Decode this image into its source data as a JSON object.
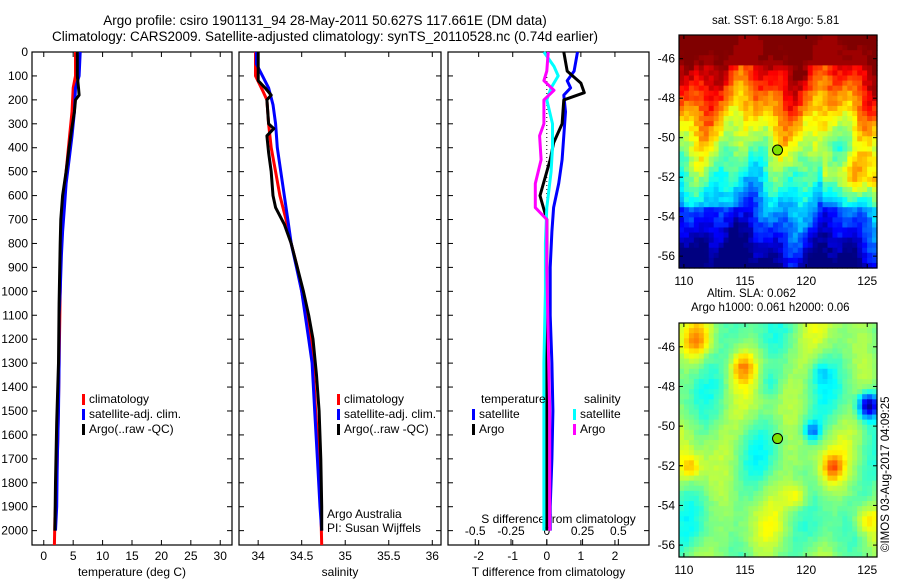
{
  "titles": {
    "line1": "Argo profile: csiro 1901131_94 28-May-2011 50.627S 117.661E (DM data)",
    "line2": "Climatology: CARS2009. Satellite-adjusted climatology: synTS_20110528.nc (0.74d earlier)"
  },
  "colors": {
    "climatology": "#ff0000",
    "satellite_adj": "#0000ff",
    "argo": "#000000",
    "t_satellite": "#0000ff",
    "t_argo": "#000000",
    "s_satellite": "#00ffff",
    "s_argo": "#ff00ff"
  },
  "annotations": {
    "argo_australia": "Argo Australia",
    "pi": "PI: Susan Wijffels",
    "copyright": "©IMOS 03-Aug-2017 04:09:25"
  },
  "chart_data": [
    {
      "type": "line",
      "name": "temperature-profile",
      "xlabel": "temperature (deg C)",
      "ylabel": "",
      "xlim": [
        -2,
        32
      ],
      "ylim": [
        2060,
        0
      ],
      "xticks": [
        0,
        5,
        10,
        15,
        20,
        25,
        30
      ],
      "yticks": [
        0,
        100,
        200,
        300,
        400,
        500,
        600,
        700,
        800,
        900,
        1000,
        1100,
        1200,
        1300,
        1400,
        1500,
        1600,
        1700,
        1800,
        1900,
        2000
      ],
      "legend": {
        "placement": "center-left",
        "entries": [
          "climatology",
          "satellite-adj. clim.",
          "Argo(..raw -QC)"
        ]
      },
      "series": [
        {
          "name": "climatology",
          "color": "#ff0000",
          "points": [
            [
              5.4,
              0
            ],
            [
              5.4,
              100
            ],
            [
              5.0,
              150
            ],
            [
              4.8,
              250
            ],
            [
              4.4,
              350
            ],
            [
              4.0,
              450
            ],
            [
              3.6,
              550
            ],
            [
              3.2,
              650
            ],
            [
              2.9,
              800
            ],
            [
              2.8,
              1000
            ],
            [
              2.6,
              1300
            ],
            [
              2.4,
              1600
            ],
            [
              2.2,
              1800
            ],
            [
              1.9,
              1950
            ],
            [
              1.8,
              2060
            ]
          ]
        },
        {
          "name": "satellite-adj. clim.",
          "color": "#0000ff",
          "points": [
            [
              6.2,
              0
            ],
            [
              6.0,
              100
            ],
            [
              5.4,
              150
            ],
            [
              5.2,
              250
            ],
            [
              4.8,
              350
            ],
            [
              4.3,
              450
            ],
            [
              3.8,
              550
            ],
            [
              3.5,
              650
            ],
            [
              3.2,
              750
            ],
            [
              3.0,
              850
            ],
            [
              2.8,
              1000
            ],
            [
              2.6,
              1100
            ],
            [
              2.6,
              1300
            ],
            [
              2.5,
              1500
            ],
            [
              2.3,
              1700
            ],
            [
              2.2,
              1900
            ],
            [
              2.0,
              2000
            ]
          ]
        },
        {
          "name": "Argo(..raw -QC)",
          "color": "#000000",
          "points": [
            [
              5.7,
              0
            ],
            [
              5.7,
              100
            ],
            [
              5.9,
              150
            ],
            [
              6.0,
              180
            ],
            [
              5.4,
              200
            ],
            [
              5.2,
              250
            ],
            [
              4.7,
              330
            ],
            [
              4.3,
              400
            ],
            [
              3.8,
              500
            ],
            [
              3.2,
              600
            ],
            [
              2.9,
              700
            ],
            [
              2.8,
              800
            ],
            [
              2.6,
              1050
            ],
            [
              2.5,
              1300
            ],
            [
              2.2,
              1550
            ],
            [
              2.0,
              1800
            ],
            [
              1.9,
              2000
            ]
          ]
        }
      ]
    },
    {
      "type": "line",
      "name": "salinity-profile",
      "xlabel": "salinity",
      "xlim": [
        33.78,
        36.1
      ],
      "ylim": [
        2060,
        0
      ],
      "xticks": [
        34,
        34.5,
        35,
        35.5,
        36
      ],
      "legend": {
        "placement": "center-right",
        "entries": [
          "climatology",
          "satellite-adj. clim.",
          "Argo(..raw -QC)"
        ]
      },
      "series": [
        {
          "name": "climatology",
          "color": "#ff0000",
          "points": [
            [
              33.97,
              0
            ],
            [
              33.97,
              100
            ],
            [
              34.05,
              160
            ],
            [
              34.1,
              200
            ],
            [
              34.12,
              300
            ],
            [
              34.15,
              400
            ],
            [
              34.2,
              500
            ],
            [
              34.25,
              600
            ],
            [
              34.32,
              700
            ],
            [
              34.38,
              800
            ],
            [
              34.45,
              900
            ],
            [
              34.5,
              1000
            ],
            [
              34.55,
              1100
            ],
            [
              34.6,
              1200
            ],
            [
              34.63,
              1300
            ],
            [
              34.66,
              1500
            ],
            [
              34.7,
              1700
            ],
            [
              34.72,
              1900
            ],
            [
              34.73,
              2060
            ]
          ]
        },
        {
          "name": "satellite-adj. clim.",
          "color": "#0000ff",
          "points": [
            [
              33.98,
              0
            ],
            [
              33.98,
              50
            ],
            [
              34.05,
              100
            ],
            [
              34.12,
              150
            ],
            [
              34.17,
              220
            ],
            [
              34.2,
              300
            ],
            [
              34.22,
              400
            ],
            [
              34.26,
              500
            ],
            [
              34.3,
              600
            ],
            [
              34.34,
              700
            ],
            [
              34.38,
              800
            ],
            [
              34.44,
              900
            ],
            [
              34.5,
              1000
            ],
            [
              34.54,
              1100
            ],
            [
              34.58,
              1200
            ],
            [
              34.62,
              1300
            ],
            [
              34.65,
              1500
            ],
            [
              34.68,
              1700
            ],
            [
              34.71,
              1900
            ],
            [
              34.73,
              2000
            ]
          ]
        },
        {
          "name": "Argo(..raw -QC)",
          "color": "#000000",
          "points": [
            [
              34.0,
              0
            ],
            [
              34.0,
              120
            ],
            [
              34.08,
              150
            ],
            [
              34.15,
              180
            ],
            [
              34.1,
              200
            ],
            [
              34.12,
              300
            ],
            [
              34.18,
              320
            ],
            [
              34.1,
              350
            ],
            [
              34.12,
              420
            ],
            [
              34.15,
              500
            ],
            [
              34.17,
              600
            ],
            [
              34.2,
              650
            ],
            [
              34.3,
              720
            ],
            [
              34.38,
              800
            ],
            [
              34.45,
              900
            ],
            [
              34.52,
              1000
            ],
            [
              34.58,
              1100
            ],
            [
              34.63,
              1200
            ],
            [
              34.67,
              1350
            ],
            [
              34.7,
              1500
            ],
            [
              34.72,
              1700
            ],
            [
              34.73,
              1900
            ],
            [
              34.73,
              2000
            ]
          ]
        }
      ]
    },
    {
      "type": "line",
      "name": "difference-profile",
      "xlabel": "T difference from climatology",
      "x2label": "S difference from climatology",
      "xlim": [
        -2.9,
        3.0
      ],
      "ylim": [
        2060,
        0
      ],
      "xticks": [
        -2,
        -1,
        0,
        1,
        2
      ],
      "x2ticks": [
        -0.5,
        -0.25,
        0,
        0.25,
        0.5
      ],
      "x2tick_labels": [
        "-0.5",
        "-0.25",
        "0",
        "0.25",
        "0.5"
      ],
      "legend": {
        "placement": "lower-center",
        "groups": [
          {
            "title": "temperature",
            "entries": [
              "satellite",
              "Argo"
            ]
          },
          {
            "title": "salinity",
            "entries": [
              "satellite",
              "Argo"
            ]
          }
        ]
      },
      "series": [
        {
          "name": "temperature satellite",
          "color": "#0000ff",
          "units": "T",
          "points": [
            [
              0.9,
              0
            ],
            [
              0.8,
              80
            ],
            [
              0.6,
              120
            ],
            [
              0.7,
              150
            ],
            [
              0.5,
              180
            ],
            [
              0.55,
              250
            ],
            [
              0.5,
              350
            ],
            [
              0.45,
              450
            ],
            [
              0.35,
              550
            ],
            [
              0.2,
              650
            ],
            [
              0.15,
              750
            ],
            [
              0.1,
              900
            ],
            [
              0.1,
              1100
            ],
            [
              0.15,
              1300
            ],
            [
              0.18,
              1500
            ],
            [
              0.15,
              1700
            ],
            [
              0.1,
              1900
            ],
            [
              0.1,
              2000
            ]
          ]
        },
        {
          "name": "temperature Argo",
          "color": "#000000",
          "units": "T",
          "points": [
            [
              0.5,
              0
            ],
            [
              0.6,
              80
            ],
            [
              1.0,
              130
            ],
            [
              1.1,
              170
            ],
            [
              0.5,
              200
            ],
            [
              0.45,
              300
            ],
            [
              0.2,
              380
            ],
            [
              0.1,
              450
            ],
            [
              -0.1,
              550
            ],
            [
              -0.2,
              600
            ],
            [
              0.0,
              700
            ],
            [
              0.0,
              900
            ],
            [
              0.0,
              1200
            ],
            [
              0.0,
              1500
            ],
            [
              0.0,
              1700
            ],
            [
              0.0,
              2000
            ]
          ]
        },
        {
          "name": "salinity satellite",
          "color": "#00ffff",
          "units": "S",
          "points": [
            [
              -0.02,
              0
            ],
            [
              0.05,
              60
            ],
            [
              0.08,
              100
            ],
            [
              0.03,
              150
            ],
            [
              0.0,
              200
            ],
            [
              0.04,
              300
            ],
            [
              0.04,
              400
            ],
            [
              0.03,
              500
            ],
            [
              0.0,
              650
            ],
            [
              -0.01,
              800
            ],
            [
              -0.01,
              1000
            ],
            [
              -0.02,
              1300
            ],
            [
              -0.02,
              1600
            ],
            [
              -0.02,
              1800
            ],
            [
              -0.02,
              2000
            ]
          ]
        },
        {
          "name": "salinity Argo",
          "color": "#ff00ff",
          "units": "S",
          "points": [
            [
              0.01,
              0
            ],
            [
              0.0,
              80
            ],
            [
              -0.02,
              120
            ],
            [
              0.05,
              160
            ],
            [
              -0.02,
              200
            ],
            [
              -0.02,
              300
            ],
            [
              -0.05,
              350
            ],
            [
              -0.04,
              450
            ],
            [
              -0.08,
              550
            ],
            [
              -0.08,
              650
            ],
            [
              0.0,
              700
            ],
            [
              0.0,
              900
            ],
            [
              0.01,
              1200
            ],
            [
              0.02,
              1500
            ],
            [
              0.02,
              1800
            ],
            [
              0.02,
              2000
            ]
          ]
        }
      ]
    },
    {
      "type": "heatmap",
      "name": "sst-map",
      "title": "sat. SST: 6.18 Argo: 5.81",
      "xlim": [
        109.6,
        125.8
      ],
      "ylim": [
        -56.6,
        -44.8
      ],
      "xticks": [
        110,
        115,
        120,
        125
      ],
      "yticks": [
        -46,
        -48,
        -50,
        -52,
        -54,
        -56
      ],
      "marker": {
        "lon": 117.661,
        "lat": -50.627
      },
      "sat_sst": 6.18,
      "argo_sst": 5.81
    },
    {
      "type": "heatmap",
      "name": "sla-map",
      "title_line1": "Altim. SLA: 0.062",
      "title_line2": "Argo h1000: 0.061 h2000: 0.06",
      "xlim": [
        109.6,
        125.8
      ],
      "ylim": [
        -56.6,
        -44.8
      ],
      "xticks": [
        110,
        115,
        120,
        125
      ],
      "yticks": [
        -46,
        -48,
        -50,
        -52,
        -54,
        -56
      ],
      "marker": {
        "lon": 117.661,
        "lat": -50.627
      },
      "altim_sla": 0.062,
      "argo_h1000": 0.061,
      "argo_h2000": 0.06
    }
  ]
}
